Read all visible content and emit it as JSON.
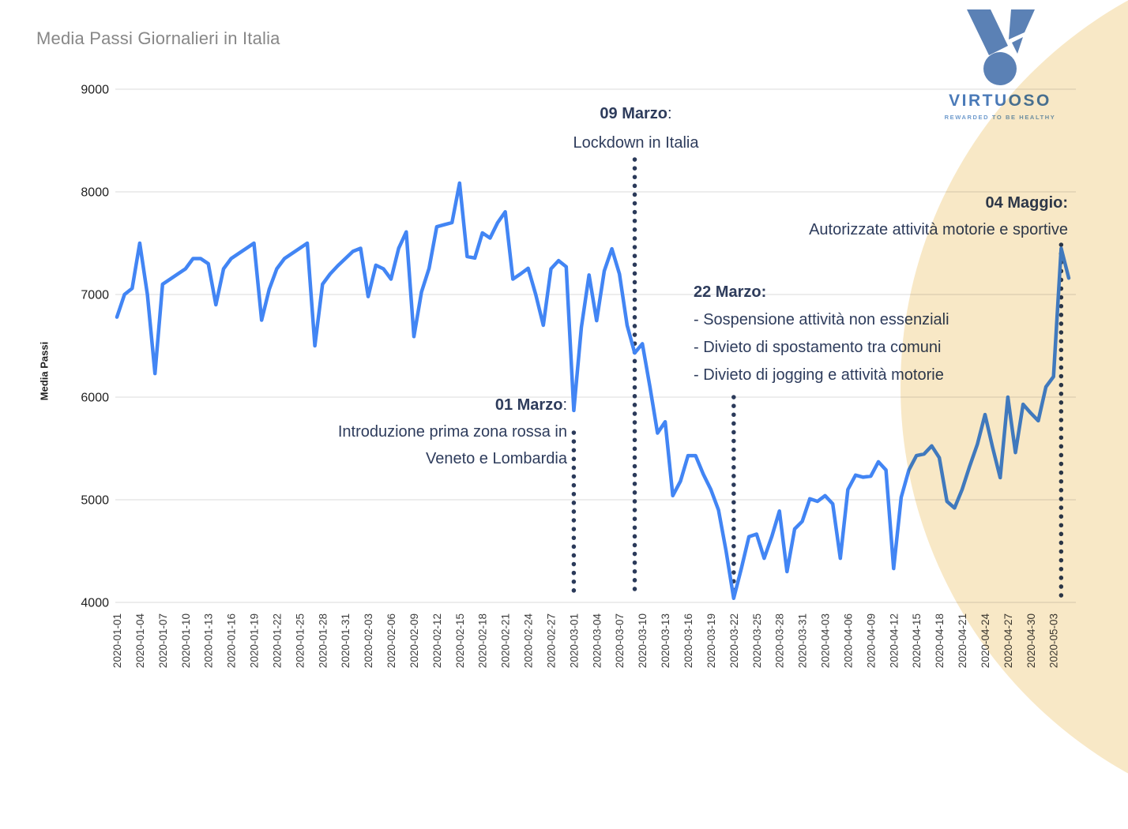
{
  "header": {
    "title": "Media Passi Giornalieri in Italia"
  },
  "logo": {
    "brand": "VIRTUOSO",
    "tagline": "REWARDED TO BE HEALTHY",
    "medal_color": "#5b81b5",
    "brand_color": "#4a7ab8",
    "tagline_color": "#6f9bcd"
  },
  "decor": {
    "circle_color": "#f8e8c6"
  },
  "annotations": {
    "marzo01": {
      "title_bold": "01 Marzo",
      "title_rest": ":",
      "line1": "Introduzione prima zona rossa in",
      "line2": "Veneto e Lombardia"
    },
    "marzo09": {
      "title_bold": "09 Marzo",
      "title_rest": ":",
      "line1": "Lockdown in Italia"
    },
    "marzo22": {
      "title_bold": "22 Marzo:",
      "title_rest": "",
      "line1": "- Sospensione attività non essenziali",
      "line2": "- Divieto di spostamento tra comuni",
      "line3": "- Divieto di jogging e attività motorie"
    },
    "maggio04": {
      "title_bold": "04 Maggio:",
      "title_rest": "",
      "line1": "Autorizzate attività motorie e sportive"
    }
  },
  "chart_data": {
    "type": "line",
    "title": "Media Passi Giornalieri in Italia",
    "xlabel": "",
    "ylabel": "Media Passi",
    "ylim": [
      4000,
      9000
    ],
    "y_ticks": [
      4000,
      5000,
      6000,
      7000,
      8000,
      9000
    ],
    "grid": true,
    "legend_position": "none",
    "line_color": "#4285f4",
    "event_line_color": "#2b3a5a",
    "x_start_date": "2020-01-01",
    "x_tick_every_days": 3,
    "x_tick_labels": [
      "2020-01-01",
      "2020-01-04",
      "2020-01-07",
      "2020-01-10",
      "2020-01-13",
      "2020-01-16",
      "2020-01-19",
      "2020-01-22",
      "2020-01-25",
      "2020-01-28",
      "2020-01-31",
      "2020-02-03",
      "2020-02-06",
      "2020-02-09",
      "2020-02-12",
      "2020-02-15",
      "2020-02-18",
      "2020-02-21",
      "2020-02-24",
      "2020-02-27",
      "2020-03-01",
      "2020-03-04",
      "2020-03-07",
      "2020-03-10",
      "2020-03-13",
      "2020-03-16",
      "2020-03-19",
      "2020-03-22",
      "2020-03-25",
      "2020-03-28",
      "2020-03-31",
      "2020-04-03",
      "2020-04-06",
      "2020-04-09",
      "2020-04-12",
      "2020-04-15",
      "2020-04-18",
      "2020-04-21",
      "2020-04-24",
      "2020-04-27",
      "2020-04-30",
      "2020-05-03"
    ],
    "series": [
      {
        "name": "Media Passi",
        "values": [
          6780,
          7000,
          7060,
          7500,
          7000,
          6230,
          7100,
          7150,
          7200,
          7250,
          7350,
          7350,
          7300,
          6900,
          7250,
          7350,
          7400,
          7450,
          7500,
          6750,
          7050,
          7250,
          7350,
          7400,
          7450,
          7500,
          6500,
          7100,
          7200,
          7280,
          7350,
          7420,
          7450,
          6980,
          7285,
          7250,
          7150,
          7450,
          7610,
          6590,
          7025,
          7255,
          7660,
          7680,
          7700,
          8085,
          7370,
          7355,
          7600,
          7550,
          7700,
          7805,
          7150,
          7200,
          7255,
          7000,
          6700,
          7250,
          7330,
          7270,
          5870,
          6680,
          7190,
          6745,
          7230,
          7445,
          7200,
          6700,
          6430,
          6520,
          6100,
          5650,
          5760,
          5040,
          5180,
          5430,
          5430,
          5250,
          5100,
          4900,
          4500,
          4040,
          4330,
          4640,
          4665,
          4430,
          4640,
          4890,
          4300,
          4715,
          4790,
          5010,
          4985,
          5040,
          4960,
          4430,
          5100,
          5240,
          5220,
          5230,
          5370,
          5290,
          4330,
          5025,
          5290,
          5430,
          5445,
          5525,
          5410,
          4985,
          4920,
          5100,
          5330,
          5540,
          5830,
          5510,
          5215,
          6000,
          5460,
          5930,
          5845,
          5770,
          6100,
          6200,
          7450,
          7160
        ]
      }
    ],
    "events": [
      {
        "date": "2020-03-01",
        "day_index": 60,
        "label": "01 Marzo",
        "description": "Introduzione prima zona rossa in Veneto e Lombardia"
      },
      {
        "date": "2020-03-09",
        "day_index": 68,
        "label": "09 Marzo",
        "description": "Lockdown in Italia"
      },
      {
        "date": "2020-03-22",
        "day_index": 81,
        "label": "22 Marzo",
        "description": "Sospensione attività non essenziali; Divieto di spostamento tra comuni; Divieto di jogging e attività motorie"
      },
      {
        "date": "2020-05-04",
        "day_index": 124,
        "label": "04 Maggio",
        "description": "Autorizzate attività motorie e sportive"
      }
    ]
  }
}
